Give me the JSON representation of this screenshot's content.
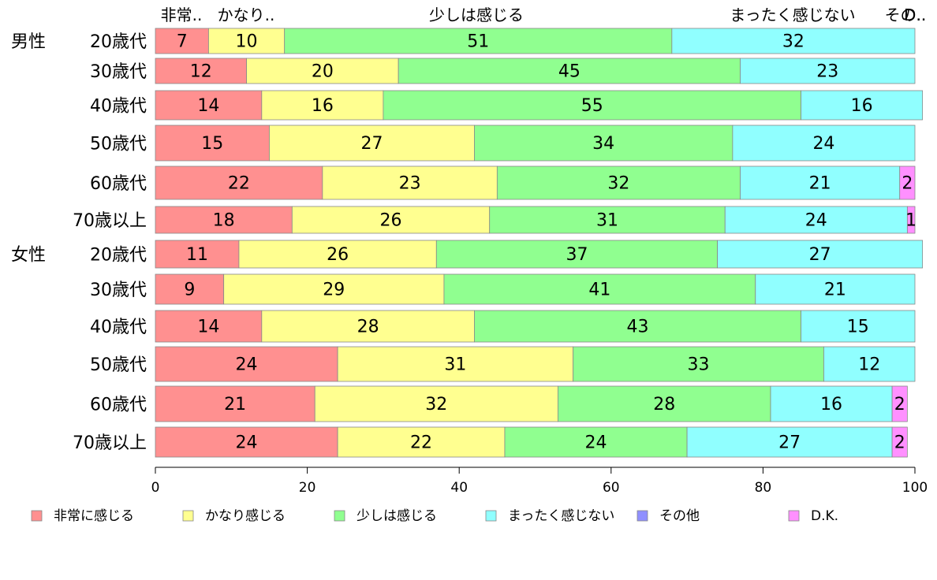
{
  "chart_data": {
    "type": "bar",
    "orientation": "horizontal",
    "stacked": true,
    "percent": true,
    "xlim": [
      0,
      100
    ],
    "x_ticks": [
      0,
      20,
      40,
      60,
      80,
      100
    ],
    "legend_position": "bottom",
    "top_labels": [
      "非常..",
      "かなり..",
      "少しは感じる",
      "まったく感じない",
      "その..",
      "D.."
    ],
    "groups": [
      {
        "name": "男性",
        "start": 0
      },
      {
        "name": "女性",
        "start": 6
      }
    ],
    "categories": [
      "20歳代",
      "30歳代",
      "40歳代",
      "50歳代",
      "60歳代",
      "70歳以上",
      "20歳代",
      "30歳代",
      "40歳代",
      "50歳代",
      "60歳代",
      "70歳以上"
    ],
    "series": [
      {
        "name": "非常に感じる",
        "color": "#ff9090",
        "values": [
          7,
          12,
          14,
          15,
          22,
          18,
          11,
          9,
          14,
          24,
          21,
          24
        ]
      },
      {
        "name": "かなり感じる",
        "color": "#ffff90",
        "values": [
          10,
          20,
          16,
          27,
          23,
          26,
          26,
          29,
          28,
          31,
          32,
          22
        ]
      },
      {
        "name": "少しは感じる",
        "color": "#90ff90",
        "values": [
          51,
          45,
          55,
          34,
          32,
          31,
          37,
          41,
          43,
          33,
          28,
          24
        ]
      },
      {
        "name": "まったく感じない",
        "color": "#90ffff",
        "values": [
          32,
          23,
          16,
          24,
          21,
          24,
          27,
          21,
          15,
          12,
          16,
          27
        ]
      },
      {
        "name": "その他",
        "color": "#9090ff",
        "values": [
          0,
          0,
          0,
          0,
          0,
          0,
          0,
          0,
          0,
          0,
          0,
          0
        ]
      },
      {
        "name": "D.K.",
        "color": "#ff90ff",
        "values": [
          0,
          0,
          0,
          0,
          2,
          1,
          0,
          0,
          0,
          0,
          2,
          2
        ]
      }
    ]
  }
}
